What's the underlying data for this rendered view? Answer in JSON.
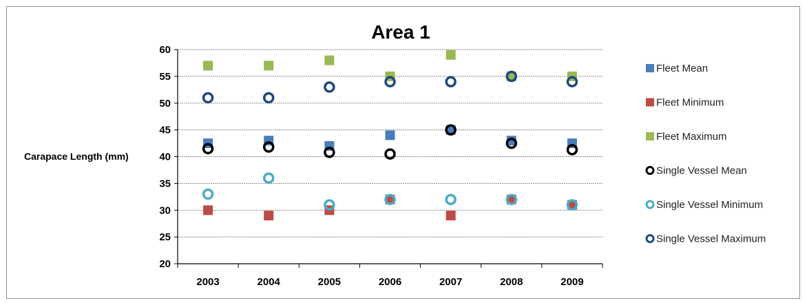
{
  "chart_data": {
    "type": "scatter",
    "title": "Area 1",
    "ylabel": "Carapace Length (mm)",
    "xlabel": "",
    "categories": [
      "2003",
      "2004",
      "2005",
      "2006",
      "2007",
      "2008",
      "2009"
    ],
    "ylim": [
      20,
      60
    ],
    "yticks": [
      20,
      25,
      30,
      35,
      40,
      45,
      50,
      55,
      60
    ],
    "grid": "horizontal dotted",
    "legend_position": "right",
    "series": [
      {
        "name": "Fleet Mean",
        "marker": "square",
        "color": "#4a7ebb",
        "values": [
          42.5,
          43,
          42,
          44,
          45,
          43,
          42.5
        ]
      },
      {
        "name": "Fleet Minimum",
        "marker": "square",
        "color": "#be4b48",
        "values": [
          30,
          29,
          30,
          32,
          29,
          32,
          31
        ]
      },
      {
        "name": "Fleet Maximum",
        "marker": "square",
        "color": "#98b954",
        "values": [
          57,
          57,
          58,
          55,
          59,
          55,
          55
        ]
      },
      {
        "name": "Single Vessel Mean",
        "marker": "circle",
        "color": "#000000",
        "values": [
          41.5,
          41.8,
          40.8,
          40.5,
          45,
          42.5,
          41.3
        ]
      },
      {
        "name": "Single Vessel Minimum",
        "marker": "circle",
        "color": "#4bacc6",
        "values": [
          33,
          36,
          31,
          32,
          32,
          32,
          31
        ]
      },
      {
        "name": "Single Vessel Maximum",
        "marker": "circle",
        "color": "#1f497d",
        "values": [
          51,
          51,
          53,
          54,
          54,
          55,
          54
        ]
      }
    ]
  }
}
